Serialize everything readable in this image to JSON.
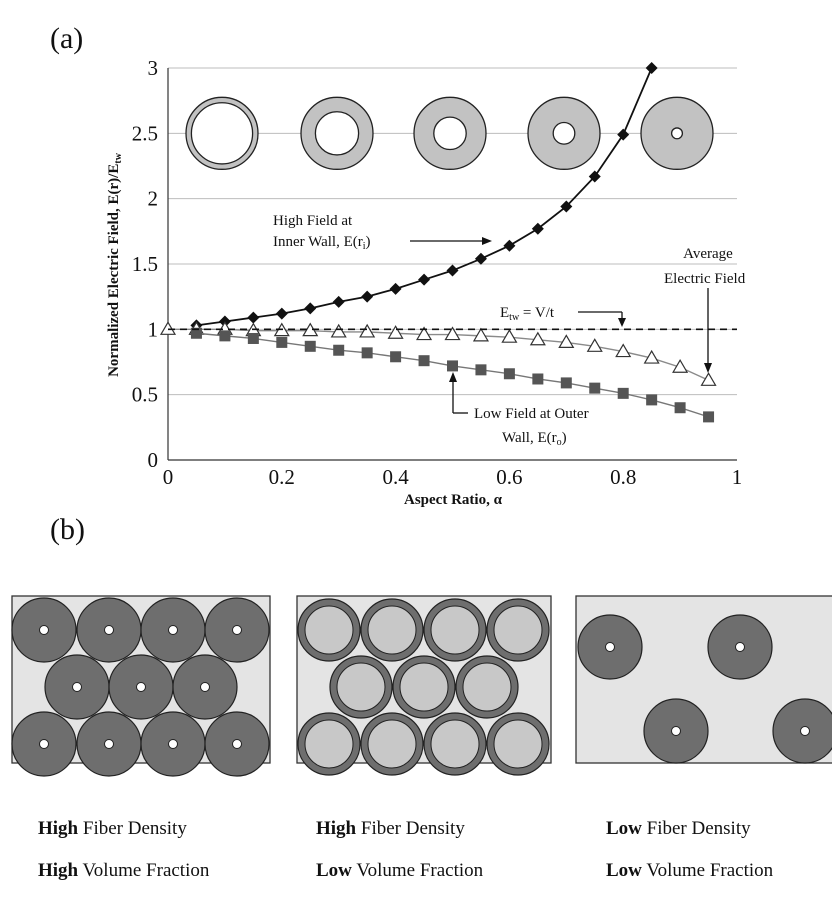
{
  "panel_a_label": "(a)",
  "panel_b_label": "(b)",
  "chart_data": {
    "type": "line",
    "xlabel": "Aspect Ratio, α",
    "ylabel": "Normalized Electric Field, E(r)/E",
    "ylabel_sub": "tw",
    "xlim": [
      0,
      1
    ],
    "ylim": [
      0,
      3
    ],
    "x_ticks": [
      "0",
      "0.2",
      "0.4",
      "0.6",
      "0.8",
      "1"
    ],
    "y_ticks": [
      "0",
      "0.5",
      "1",
      "1.5",
      "2",
      "2.5",
      "3"
    ],
    "grid": "horizontal",
    "series": [
      {
        "name": "High Field at Inner Wall, E(ri)",
        "marker": "diamond",
        "x": [
          0.05,
          0.1,
          0.15,
          0.2,
          0.25,
          0.3,
          0.35,
          0.4,
          0.45,
          0.5,
          0.55,
          0.6,
          0.65,
          0.7,
          0.75,
          0.8,
          0.85
        ],
        "y": [
          1.03,
          1.06,
          1.09,
          1.12,
          1.16,
          1.21,
          1.25,
          1.31,
          1.38,
          1.45,
          1.54,
          1.64,
          1.77,
          1.94,
          2.17,
          2.49,
          3.0
        ]
      },
      {
        "name": "Average Electric Field",
        "marker": "triangle-open",
        "x": [
          0,
          0.05,
          0.1,
          0.15,
          0.2,
          0.25,
          0.3,
          0.35,
          0.4,
          0.45,
          0.5,
          0.55,
          0.6,
          0.65,
          0.7,
          0.75,
          0.8,
          0.85,
          0.9,
          0.95
        ],
        "y": [
          1.0,
          1.0,
          1.0,
          0.99,
          0.99,
          0.99,
          0.98,
          0.98,
          0.97,
          0.96,
          0.96,
          0.95,
          0.94,
          0.92,
          0.9,
          0.87,
          0.83,
          0.78,
          0.71,
          0.61
        ]
      },
      {
        "name": "Low Field at Outer Wall, E(ro)",
        "marker": "square",
        "x": [
          0.05,
          0.1,
          0.15,
          0.2,
          0.25,
          0.3,
          0.35,
          0.4,
          0.45,
          0.5,
          0.55,
          0.6,
          0.65,
          0.7,
          0.75,
          0.8,
          0.85,
          0.9,
          0.95
        ],
        "y": [
          0.97,
          0.95,
          0.93,
          0.9,
          0.87,
          0.84,
          0.82,
          0.79,
          0.76,
          0.72,
          0.69,
          0.66,
          0.62,
          0.59,
          0.55,
          0.51,
          0.46,
          0.4,
          0.33
        ]
      }
    ],
    "reference_line": {
      "label": "E",
      "label_sub": "tw",
      "label_rest": " = V/t",
      "y": 1.0,
      "style": "dashed"
    },
    "annotations": {
      "high_line1": "High Field at",
      "high_line2": "Inner Wall, E(r",
      "high_sub": "i",
      "high_end": ")",
      "avg_line1": "Average",
      "avg_line2": "Electric Field",
      "low_line1": "Low Field at Outer",
      "low_line2": "Wall, E(r",
      "low_sub": "o",
      "low_end": ")"
    },
    "ring_inner_fraction": [
      0.85,
      0.6,
      0.45,
      0.3,
      0.15
    ]
  },
  "fiber_panels": [
    {
      "density_word": "High",
      "density_rest": " Fiber Density",
      "volume_word": "High",
      "volume_rest": " Volume Fraction"
    },
    {
      "density_word": "High",
      "density_rest": " Fiber Density",
      "volume_word": "Low",
      "volume_rest": " Volume Fraction"
    },
    {
      "density_word": "Low",
      "density_rest": " Fiber Density",
      "volume_word": "Low",
      "volume_rest": " Volume Fraction"
    }
  ],
  "colors": {
    "fiber_dark": "#6e6e6e",
    "fiber_light": "#c8c8c8",
    "panel_bg": "#e4e4e4",
    "ring_fill": "#c2c2c2",
    "square_marker": "#555555",
    "grid": "#bdbdbd"
  }
}
